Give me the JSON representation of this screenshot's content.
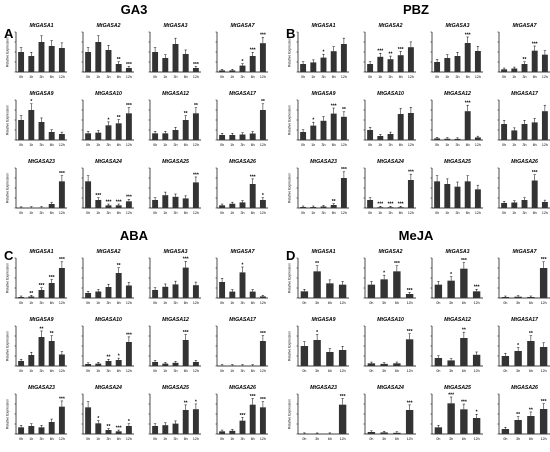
{
  "figure": {
    "bar_color": "#333333",
    "axis_color": "#000000",
    "panels": [
      {
        "letter": "A",
        "title": "GA3"
      },
      {
        "letter": "B",
        "title": "PBZ"
      },
      {
        "letter": "C",
        "title": "ABA"
      },
      {
        "letter": "D",
        "title": "MeJA"
      }
    ]
  },
  "chart_data": [
    {
      "panel": "A",
      "treatment": "GA3",
      "type": "bar",
      "ylabel": "Relative Expression",
      "categories": [
        "0h",
        "1h",
        "3h",
        "6h",
        "12h"
      ],
      "genes": [
        {
          "name": "MtGASA1",
          "values": [
            1.0,
            0.8,
            1.5,
            1.3,
            1.2
          ],
          "sig": [
            "",
            "",
            "",
            "",
            ""
          ]
        },
        {
          "name": "MtGASA2",
          "values": [
            1.0,
            1.5,
            1.1,
            0.4,
            0.2
          ],
          "sig": [
            "",
            "",
            "",
            "**",
            "***"
          ]
        },
        {
          "name": "MtGASA3",
          "values": [
            1.0,
            0.7,
            1.4,
            0.9,
            0.2
          ],
          "sig": [
            "",
            "",
            "",
            "",
            "***"
          ]
        },
        {
          "name": "MtGASA7",
          "values": [
            1.0,
            1.0,
            4.0,
            10.0,
            18.0
          ],
          "sig": [
            "",
            "",
            "*",
            "***",
            "***"
          ]
        },
        {
          "name": "MtGASA9",
          "values": [
            1.0,
            1.5,
            0.9,
            0.4,
            0.3
          ],
          "sig": [
            "",
            "*",
            "",
            "",
            ""
          ]
        },
        {
          "name": "MtGASA10",
          "values": [
            1.0,
            1.1,
            2.2,
            2.5,
            4.0
          ],
          "sig": [
            "",
            "",
            "*",
            "**",
            "***"
          ]
        },
        {
          "name": "MtGASA12",
          "values": [
            1.0,
            1.0,
            1.5,
            3.0,
            4.0
          ],
          "sig": [
            "",
            "",
            "",
            "**",
            "**"
          ]
        },
        {
          "name": "MtGASA17",
          "values": [
            1.0,
            1.0,
            1.1,
            1.3,
            6.0
          ],
          "sig": [
            "",
            "",
            "",
            "",
            "**"
          ]
        },
        {
          "name": "MtGASA23",
          "values": [
            1.0,
            1.5,
            2.0,
            15.0,
            100.0
          ],
          "sig": [
            "",
            "",
            "",
            "",
            "***"
          ]
        },
        {
          "name": "MtGASA24",
          "values": [
            1.0,
            0.3,
            0.1,
            0.1,
            0.25
          ],
          "sig": [
            "",
            "***",
            "***",
            "***",
            "***"
          ]
        },
        {
          "name": "MtGASA25",
          "values": [
            1.0,
            1.6,
            1.4,
            1.2,
            3.2
          ],
          "sig": [
            "",
            "",
            "",
            "",
            "***"
          ]
        },
        {
          "name": "MtGASA26",
          "values": [
            1.0,
            1.6,
            2.1,
            9.0,
            3.0
          ],
          "sig": [
            "",
            "",
            "",
            "***",
            "*"
          ]
        }
      ]
    },
    {
      "panel": "B",
      "treatment": "PBZ",
      "type": "bar",
      "ylabel": "Relative Expression",
      "categories": [
        "0h",
        "1h",
        "3h",
        "6h",
        "12h"
      ],
      "genes": [
        {
          "name": "MtGASA1",
          "values": [
            1.0,
            1.2,
            1.8,
            2.6,
            3.5
          ],
          "sig": [
            "",
            "",
            "*",
            "",
            ""
          ]
        },
        {
          "name": "MtGASA2",
          "values": [
            1.0,
            1.9,
            1.6,
            2.1,
            3.1
          ],
          "sig": [
            "",
            "***",
            "**",
            "***",
            ""
          ]
        },
        {
          "name": "MtGASA3",
          "values": [
            1.0,
            1.4,
            1.6,
            2.9,
            2.1
          ],
          "sig": [
            "",
            "",
            "",
            "***",
            ""
          ]
        },
        {
          "name": "MtGASA7",
          "values": [
            1.0,
            1.3,
            3.0,
            8.0,
            6.5
          ],
          "sig": [
            "",
            "",
            "**",
            "***",
            ""
          ]
        },
        {
          "name": "MtGASA9",
          "values": [
            1.0,
            1.8,
            2.4,
            3.3,
            2.9
          ],
          "sig": [
            "",
            "*",
            "",
            "***",
            "**"
          ]
        },
        {
          "name": "MtGASA10",
          "values": [
            1.0,
            0.4,
            0.6,
            2.6,
            2.7
          ],
          "sig": [
            "",
            "",
            "",
            "",
            ""
          ]
        },
        {
          "name": "MtGASA12",
          "values": [
            1.0,
            0.8,
            0.7,
            18.0,
            1.6
          ],
          "sig": [
            "",
            "",
            "",
            "***",
            ""
          ]
        },
        {
          "name": "MtGASA17",
          "values": [
            1.0,
            0.6,
            1.0,
            1.1,
            1.8
          ],
          "sig": [
            "",
            "",
            "",
            "",
            ""
          ]
        },
        {
          "name": "MtGASA23",
          "values": [
            1.0,
            1.0,
            1.5,
            3.0,
            30.0
          ],
          "sig": [
            "",
            "",
            "",
            "**",
            "***"
          ]
        },
        {
          "name": "MtGASA24",
          "values": [
            1.0,
            0.1,
            0.1,
            0.1,
            3.5
          ],
          "sig": [
            "",
            "***",
            "***",
            "***",
            "***"
          ]
        },
        {
          "name": "MtGASA25",
          "values": [
            1.0,
            0.9,
            0.8,
            1.0,
            0.7
          ],
          "sig": [
            "",
            "",
            "",
            "",
            ""
          ]
        },
        {
          "name": "MtGASA26",
          "values": [
            1.0,
            1.1,
            1.6,
            5.5,
            1.2
          ],
          "sig": [
            "",
            "",
            "",
            "***",
            ""
          ]
        }
      ]
    },
    {
      "panel": "C",
      "treatment": "ABA",
      "type": "bar",
      "ylabel": "Relative Expression",
      "categories": [
        "0h",
        "1h",
        "3h",
        "6h",
        "12h"
      ],
      "genes": [
        {
          "name": "MtGASA1",
          "values": [
            1.0,
            1.5,
            8.0,
            15.0,
            30.0
          ],
          "sig": [
            "",
            "**",
            "***",
            "***",
            "***"
          ]
        },
        {
          "name": "MtGASA2",
          "values": [
            1.0,
            1.3,
            2.2,
            5.0,
            2.5
          ],
          "sig": [
            "",
            "",
            "",
            "**",
            ""
          ]
        },
        {
          "name": "MtGASA3",
          "values": [
            1.0,
            1.4,
            1.7,
            3.8,
            1.6
          ],
          "sig": [
            "",
            "",
            "",
            "***",
            ""
          ]
        },
        {
          "name": "MtGASA7",
          "values": [
            1.0,
            0.4,
            1.6,
            0.4,
            0.1
          ],
          "sig": [
            "",
            "",
            "*",
            "",
            ""
          ]
        },
        {
          "name": "MtGASA9",
          "values": [
            1.0,
            2.2,
            5.8,
            5.0,
            2.3
          ],
          "sig": [
            "",
            "",
            "**",
            "**",
            ""
          ]
        },
        {
          "name": "MtGASA10",
          "values": [
            1.0,
            1.2,
            2.5,
            3.0,
            12.0
          ],
          "sig": [
            "",
            "",
            "**",
            "*",
            "***"
          ]
        },
        {
          "name": "MtGASA12",
          "values": [
            1.0,
            0.6,
            0.8,
            6.5,
            1.0
          ],
          "sig": [
            "",
            "",
            "",
            "***",
            ""
          ]
        },
        {
          "name": "MtGASA17",
          "values": [
            1.0,
            1.1,
            1.0,
            1.0,
            50.0
          ],
          "sig": [
            "",
            "",
            "",
            "",
            "***"
          ]
        },
        {
          "name": "MtGASA23",
          "values": [
            1.0,
            1.2,
            1.0,
            1.8,
            4.1
          ],
          "sig": [
            "",
            "",
            "",
            "",
            "***"
          ]
        },
        {
          "name": "MtGASA24",
          "values": [
            1.0,
            0.4,
            0.15,
            0.1,
            0.3
          ],
          "sig": [
            "",
            "*",
            "**",
            "***",
            "*"
          ]
        },
        {
          "name": "MtGASA25",
          "values": [
            1.0,
            1.1,
            1.3,
            3.0,
            3.1
          ],
          "sig": [
            "",
            "",
            "",
            "**",
            "*"
          ]
        },
        {
          "name": "MtGASA26",
          "values": [
            1.0,
            1.2,
            5.0,
            11.0,
            10.0
          ],
          "sig": [
            "",
            "",
            "***",
            "***",
            "***"
          ]
        }
      ]
    },
    {
      "panel": "D",
      "treatment": "MeJA",
      "type": "bar",
      "ylabel": "Relative Expression",
      "categories": [
        "0h",
        "3h",
        "6h",
        "12h"
      ],
      "genes": [
        {
          "name": "MtGASA1",
          "values": [
            1.0,
            4.0,
            2.2,
            2.0
          ],
          "sig": [
            "",
            "**",
            "",
            ""
          ]
        },
        {
          "name": "MtGASA2",
          "values": [
            1.0,
            1.4,
            2.0,
            0.3
          ],
          "sig": [
            "",
            "*",
            "***",
            "***"
          ]
        },
        {
          "name": "MtGASA3",
          "values": [
            1.0,
            1.3,
            2.2,
            0.5
          ],
          "sig": [
            "",
            "*",
            "***",
            "***"
          ]
        },
        {
          "name": "MtGASA7",
          "values": [
            1.0,
            1.3,
            1.0,
            30.0
          ],
          "sig": [
            "",
            "",
            "",
            "***"
          ]
        },
        {
          "name": "MtGASA9",
          "values": [
            1.0,
            1.3,
            0.7,
            0.8
          ],
          "sig": [
            "",
            "*",
            "",
            ""
          ]
        },
        {
          "name": "MtGASA10",
          "values": [
            1.0,
            0.8,
            1.0,
            10.0
          ],
          "sig": [
            "",
            "",
            "",
            "***"
          ]
        },
        {
          "name": "MtGASA12",
          "values": [
            1.0,
            0.7,
            3.5,
            1.4
          ],
          "sig": [
            "",
            "",
            "**",
            ""
          ]
        },
        {
          "name": "MtGASA17",
          "values": [
            1.0,
            1.5,
            2.5,
            1.9
          ],
          "sig": [
            "",
            "*",
            "**",
            ""
          ]
        },
        {
          "name": "MtGASA23",
          "values": [
            1.0,
            0.8,
            1.0,
            110.0
          ],
          "sig": [
            "",
            "",
            "",
            "***"
          ]
        },
        {
          "name": "MtGASA24",
          "values": [
            1.0,
            0.8,
            0.6,
            12.0
          ],
          "sig": [
            "",
            "",
            "",
            "***"
          ]
        },
        {
          "name": "MtGASA25",
          "values": [
            1.0,
            4.6,
            3.7,
            2.4
          ],
          "sig": [
            "",
            "***",
            "***",
            "*"
          ]
        },
        {
          "name": "MtGASA26",
          "values": [
            1.0,
            2.8,
            3.6,
            5.0
          ],
          "sig": [
            "",
            "**",
            "**",
            "***"
          ]
        }
      ]
    }
  ]
}
